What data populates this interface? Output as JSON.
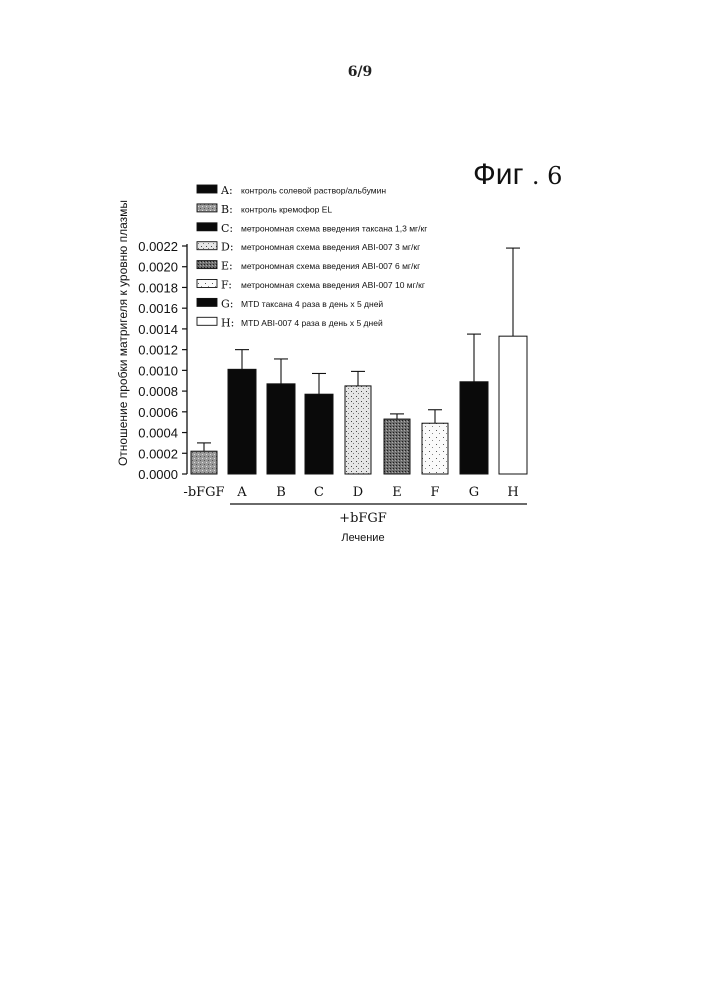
{
  "page": {
    "number": "6/9"
  },
  "figure": {
    "label": "Фиг",
    "number": ". 6"
  },
  "chart_data": {
    "type": "bar",
    "title": "",
    "ylabel": "Отношение пробки матригеля к уровню плазмы",
    "xlabel": "Лечение",
    "group_label": "+bFGF",
    "ylim": [
      0,
      0.0022
    ],
    "yticks": [
      "0.0000",
      "0.0002",
      "0.0004",
      "0.0006",
      "0.0008",
      "0.0010",
      "0.0012",
      "0.0014",
      "0.0016",
      "0.0018",
      "0.0020",
      "0.0022"
    ],
    "categories": [
      "-bFGF",
      "A",
      "B",
      "C",
      "D",
      "E",
      "F",
      "G",
      "H"
    ],
    "values": [
      0.00022,
      0.00101,
      0.00087,
      0.00077,
      0.00085,
      0.00053,
      0.00049,
      0.00089,
      0.00133
    ],
    "errors": [
      8e-05,
      0.00019,
      0.00024,
      0.0002,
      0.00014,
      5e-05,
      0.00013,
      0.00046,
      0.00085
    ],
    "fills": [
      "light-dots",
      "black",
      "black",
      "black",
      "white-dots",
      "dense-dots",
      "sparse-dots",
      "black",
      "white"
    ],
    "legend": [
      {
        "key": "A:",
        "text": "контроль солевой раствор/альбумин",
        "fill": "black"
      },
      {
        "key": "B:",
        "text": "контроль кремофор EL",
        "fill": "light-dots"
      },
      {
        "key": "C:",
        "text": "метрономная схема введения таксана 1,3 мг/кг",
        "fill": "black"
      },
      {
        "key": "D:",
        "text": "метрономная схема введения ABI-007 3 мг/кг",
        "fill": "white-dots"
      },
      {
        "key": "E:",
        "text": "метрономная схема введения ABI-007 6 мг/кг",
        "fill": "dense-dots"
      },
      {
        "key": "F:",
        "text": "метрономная схема введения ABI-007 10 мг/кг",
        "fill": "sparse-dots"
      },
      {
        "key": "G:",
        "text": "MTD таксана 4 раза в день x 5 дней",
        "fill": "black"
      },
      {
        "key": "H:",
        "text": "MTD ABI-007 4 раза в день x 5 дней",
        "fill": "white"
      }
    ],
    "legend_position": "top-left",
    "grid": false
  }
}
